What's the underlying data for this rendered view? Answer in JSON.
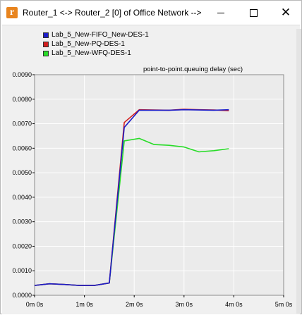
{
  "window": {
    "title": "Router_1 <-> Router_2 [0] of Office Network -->",
    "icon_letter": "r",
    "close_glyph": "✕"
  },
  "colors": {
    "client_bg": "#f0f0f0",
    "plot_bg": "#ebebeb",
    "grid": "#ffffff",
    "app_icon": "#e8841e"
  },
  "legend": [
    {
      "label": "Lab_5_New-FIFO_New-DES-1",
      "color": "#1c1cc8"
    },
    {
      "label": "Lab_5_New-PQ-DES-1",
      "color": "#d21e1e"
    },
    {
      "label": "Lab_5_New-WFQ-DES-1",
      "color": "#28dc28"
    }
  ],
  "chart_data": {
    "type": "line",
    "title": "point-to-point.queuing delay (sec)",
    "xlabel": "",
    "ylabel": "",
    "xlim": [
      0,
      300
    ],
    "ylim": [
      0,
      0.009
    ],
    "x_unit": "seconds",
    "x_ticks": [
      0,
      60,
      120,
      180,
      240,
      300
    ],
    "x_tick_labels": [
      "0m 0s",
      "1m 0s",
      "2m 0s",
      "3m 0s",
      "4m 0s",
      "5m 0s"
    ],
    "y_ticks": [
      0,
      0.001,
      0.002,
      0.003,
      0.004,
      0.005,
      0.006,
      0.007,
      0.008,
      0.009
    ],
    "y_tick_labels": [
      "0.0000",
      "0.0010",
      "0.0020",
      "0.0030",
      "0.0040",
      "0.0050",
      "0.0060",
      "0.0070",
      "0.0080",
      "0.0090"
    ],
    "grid": true,
    "legend_position": "top-left",
    "series": [
      {
        "name": "Lab_5_New-FIFO_New-DES-1",
        "color": "#1c1cc8",
        "x": [
          0,
          18,
          36,
          54,
          72,
          90,
          108,
          126,
          144,
          162,
          180,
          198,
          216,
          234
        ],
        "y": [
          0.0004,
          0.00047,
          0.00044,
          0.0004,
          0.0004,
          0.0005,
          0.00685,
          0.00755,
          0.00755,
          0.00755,
          0.00757,
          0.00756,
          0.00755,
          0.00757
        ]
      },
      {
        "name": "Lab_5_New-PQ-DES-1",
        "color": "#d21e1e",
        "x": [
          0,
          18,
          36,
          54,
          72,
          90,
          108,
          126,
          144,
          162,
          180,
          198,
          216,
          234
        ],
        "y": [
          0.0004,
          0.00047,
          0.00044,
          0.0004,
          0.0004,
          0.0005,
          0.00705,
          0.00757,
          0.00756,
          0.00755,
          0.00759,
          0.00757,
          0.00756,
          0.00753
        ]
      },
      {
        "name": "Lab_5_New-WFQ-DES-1",
        "color": "#28dc28",
        "x": [
          0,
          18,
          36,
          54,
          72,
          90,
          108,
          126,
          144,
          162,
          180,
          198,
          216,
          234
        ],
        "y": [
          0.0004,
          0.00047,
          0.00044,
          0.0004,
          0.0004,
          0.0005,
          0.0063,
          0.0064,
          0.00615,
          0.00612,
          0.00605,
          0.00585,
          0.0059,
          0.00598
        ]
      }
    ]
  }
}
